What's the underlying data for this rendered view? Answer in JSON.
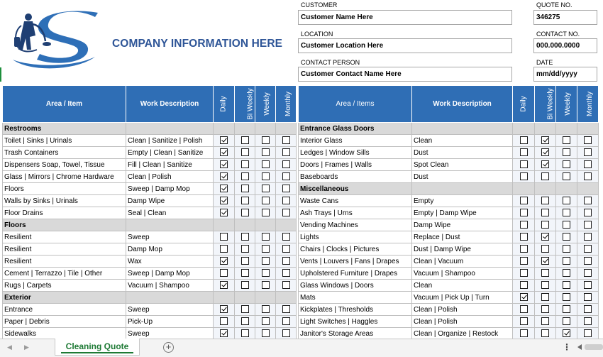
{
  "header": {
    "company": "COMPANY INFORMATION HERE",
    "fields": {
      "customer_label": "CUSTOMER",
      "customer_value": "Customer Name Here",
      "location_label": "LOCATION",
      "location_value": "Customer Location Here",
      "contact_label": "CONTACT PERSON",
      "contact_value": "Customer Contact Name Here",
      "quote_label": "QUOTE NO.",
      "quote_value": "346275",
      "contactno_label": "CONTACT NO.",
      "contactno_value": "000.000.0000",
      "date_label": "DATE",
      "date_value": "mm/dd/yyyy"
    }
  },
  "left_table": {
    "headers": [
      "Area / Item",
      "Work Description",
      "Daily",
      "Bi Weekly",
      "Weekly",
      "Monthly"
    ],
    "rows": [
      {
        "type": "section",
        "label": "Restrooms"
      },
      {
        "type": "item",
        "area": "Toilet | Sinks | Urinals",
        "desc": "Clean | Sanitize | Polish",
        "checks": [
          true,
          false,
          false,
          false
        ]
      },
      {
        "type": "item",
        "area": "Trash Containers",
        "desc": "Empty | Clean | Sanitize",
        "checks": [
          true,
          false,
          false,
          false
        ]
      },
      {
        "type": "item",
        "area": "Dispensers Soap, Towel, Tissue",
        "desc": "Fill | Clean | Sanitize",
        "checks": [
          true,
          false,
          false,
          false
        ]
      },
      {
        "type": "item",
        "area": "Glass | Mirrors | Chrome Hardware",
        "desc": "Clean | Polish",
        "checks": [
          true,
          false,
          false,
          false
        ]
      },
      {
        "type": "item",
        "area": "Floors",
        "desc": "Sweep | Damp Mop",
        "checks": [
          true,
          false,
          false,
          false
        ]
      },
      {
        "type": "item",
        "area": "Walls by Sinks | Urinals",
        "desc": "Damp Wipe",
        "checks": [
          true,
          false,
          false,
          false
        ]
      },
      {
        "type": "item",
        "area": "Floor Drains",
        "desc": "Seal | Clean",
        "checks": [
          true,
          false,
          false,
          false
        ]
      },
      {
        "type": "section",
        "label": "Floors"
      },
      {
        "type": "item",
        "area": "Resilient",
        "desc": "Sweep",
        "checks": [
          false,
          false,
          false,
          false
        ]
      },
      {
        "type": "item",
        "area": "Resilient",
        "desc": "Damp Mop",
        "checks": [
          false,
          false,
          false,
          false
        ]
      },
      {
        "type": "item",
        "area": "Resilient",
        "desc": "Wax",
        "checks": [
          true,
          false,
          false,
          false
        ]
      },
      {
        "type": "item",
        "area": "Cement | Terrazzo | Tile | Other",
        "desc": "Sweep | Damp Mop",
        "checks": [
          false,
          false,
          false,
          false
        ]
      },
      {
        "type": "item",
        "area": "Rugs | Carpets",
        "desc": "Vacuum | Shampoo",
        "checks": [
          true,
          false,
          false,
          false
        ]
      },
      {
        "type": "section",
        "label": "Exterior"
      },
      {
        "type": "item",
        "area": "Entrance",
        "desc": "Sweep",
        "checks": [
          true,
          false,
          false,
          false
        ]
      },
      {
        "type": "item",
        "area": "Paper | Debris",
        "desc": "Pick-Up",
        "checks": [
          false,
          false,
          false,
          false
        ]
      },
      {
        "type": "item",
        "area": "Sidewalks",
        "desc": "Sweep",
        "checks": [
          true,
          false,
          false,
          false
        ]
      }
    ]
  },
  "right_table": {
    "headers": [
      "Area / Items",
      "Work Description",
      "Daily",
      "Bi Weekly",
      "Weekly",
      "Monthly"
    ],
    "rows": [
      {
        "type": "section",
        "label": "Entrance Glass Doors"
      },
      {
        "type": "item",
        "area": "Interior Glass",
        "desc": "Clean",
        "checks": [
          false,
          true,
          false,
          false
        ]
      },
      {
        "type": "item",
        "area": "Ledges | Window  Sills",
        "desc": "Dust",
        "checks": [
          false,
          true,
          false,
          false
        ]
      },
      {
        "type": "item",
        "area": "Doors | Frames | Walls",
        "desc": "Spot Clean",
        "checks": [
          false,
          true,
          false,
          false
        ]
      },
      {
        "type": "item",
        "area": "Baseboards",
        "desc": "Dust",
        "checks": [
          false,
          false,
          false,
          false
        ]
      },
      {
        "type": "section",
        "label": "Miscellaneous"
      },
      {
        "type": "item",
        "area": "Waste Cans",
        "desc": "Empty",
        "checks": [
          false,
          false,
          false,
          false
        ]
      },
      {
        "type": "item",
        "area": "Ash Trays | Urns",
        "desc": "Empty | Damp Wipe",
        "checks": [
          false,
          false,
          false,
          false
        ]
      },
      {
        "type": "item",
        "area": "Vending Machines",
        "desc": "Damp Wipe",
        "checks": [
          false,
          false,
          false,
          false
        ]
      },
      {
        "type": "item",
        "area": "Lights",
        "desc": "Replace | Dust",
        "checks": [
          false,
          true,
          false,
          false
        ]
      },
      {
        "type": "item",
        "area": "Chairs | Clocks | Pictures",
        "desc": "Dust | Damp Wipe",
        "checks": [
          false,
          false,
          false,
          false
        ]
      },
      {
        "type": "item",
        "area": "Vents | Louvers | Fans | Drapes",
        "desc": "Clean | Vacuum",
        "checks": [
          false,
          true,
          false,
          false
        ]
      },
      {
        "type": "item",
        "area": "Upholstered Furniture | Drapes",
        "desc": "Vacuum | Shampoo",
        "checks": [
          false,
          false,
          false,
          false
        ]
      },
      {
        "type": "item",
        "area": "Glass Windows | Doors",
        "desc": "Clean",
        "checks": [
          false,
          false,
          false,
          false
        ]
      },
      {
        "type": "item",
        "area": "Mats",
        "desc": "Vacuum | Pick Up | Turn",
        "checks": [
          true,
          false,
          false,
          false
        ]
      },
      {
        "type": "item",
        "area": "Kickplates | Thresholds",
        "desc": "Clean | Polish",
        "checks": [
          false,
          false,
          false,
          false
        ]
      },
      {
        "type": "item",
        "area": "Light Switches | Haggles",
        "desc": "Clean | Polish",
        "checks": [
          false,
          false,
          false,
          false
        ]
      },
      {
        "type": "item",
        "area": "Janitor's Storage Areas",
        "desc": "Clean | Organize | Restock",
        "checks": [
          false,
          false,
          true,
          false
        ]
      }
    ]
  },
  "tabs": {
    "active": "Cleaning Quote",
    "add_icon": "plus-circle-icon",
    "menu_icon": "more-vertical-icon"
  },
  "colors": {
    "header_blue": "#2f6eb5",
    "company_blue": "#2e5597",
    "section_gray": "#d9d9d9",
    "tab_green": "#1e7a35"
  }
}
